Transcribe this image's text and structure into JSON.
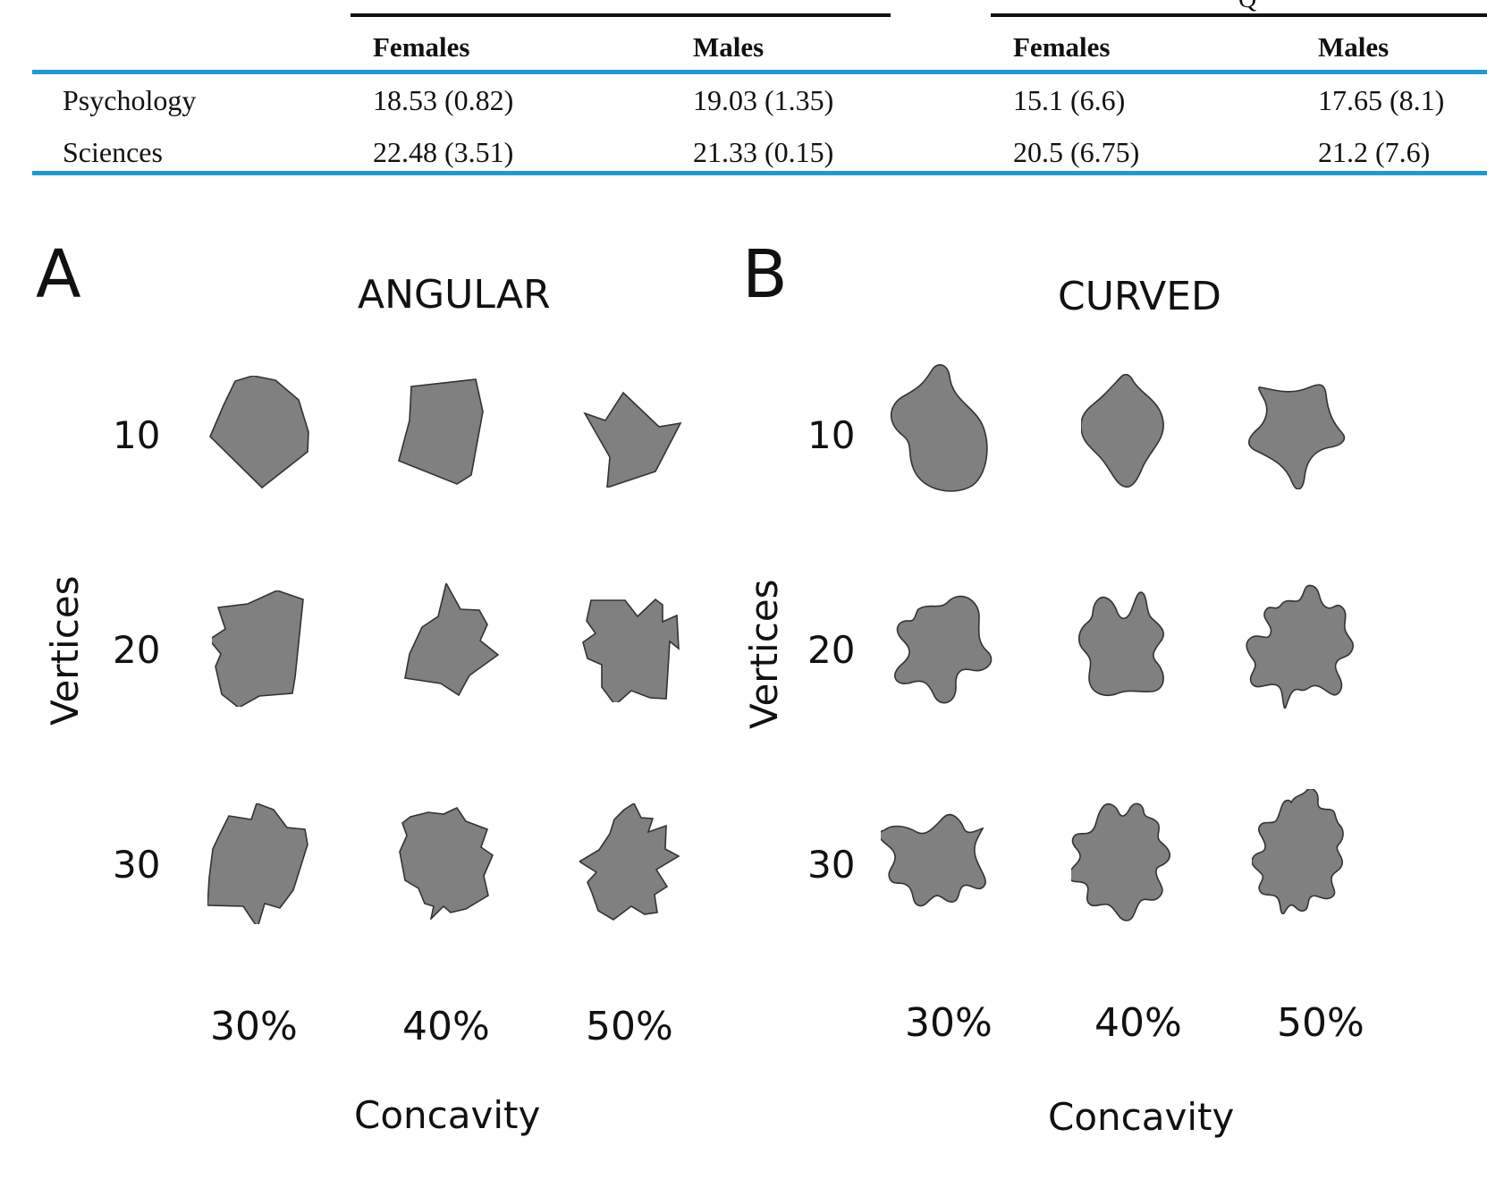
{
  "table": {
    "partial_header_glyph": "Q",
    "header": [
      "",
      "Females",
      "Males",
      "Females",
      "Males"
    ],
    "rows": [
      [
        "Psychology",
        "18.53 (0.82)",
        "19.03 (1.35)",
        "15.1 (6.6)",
        "17.65 (8.1)"
      ],
      [
        "Sciences",
        "22.48 (3.51)",
        "21.33 (0.15)",
        "20.5 (6.75)",
        "21.2 (7.6)"
      ]
    ]
  },
  "figure": {
    "panels": [
      {
        "letter": "A",
        "title": "ANGULAR",
        "y_axis_label": "Vertices",
        "row_labels": [
          "10",
          "20",
          "30"
        ],
        "col_labels": [
          "30%",
          "40%",
          "50%"
        ],
        "x_axis_label": "Concavity"
      },
      {
        "letter": "B",
        "title": "CURVED",
        "y_axis_label": "Vertices",
        "row_labels": [
          "10",
          "20",
          "30"
        ],
        "col_labels": [
          "30%",
          "40%",
          "50%"
        ],
        "x_axis_label": "Concavity"
      }
    ],
    "colors": {
      "shape_fill": "#808080",
      "shape_stroke": "#333333",
      "table_rule": "#1e9ad6"
    }
  }
}
